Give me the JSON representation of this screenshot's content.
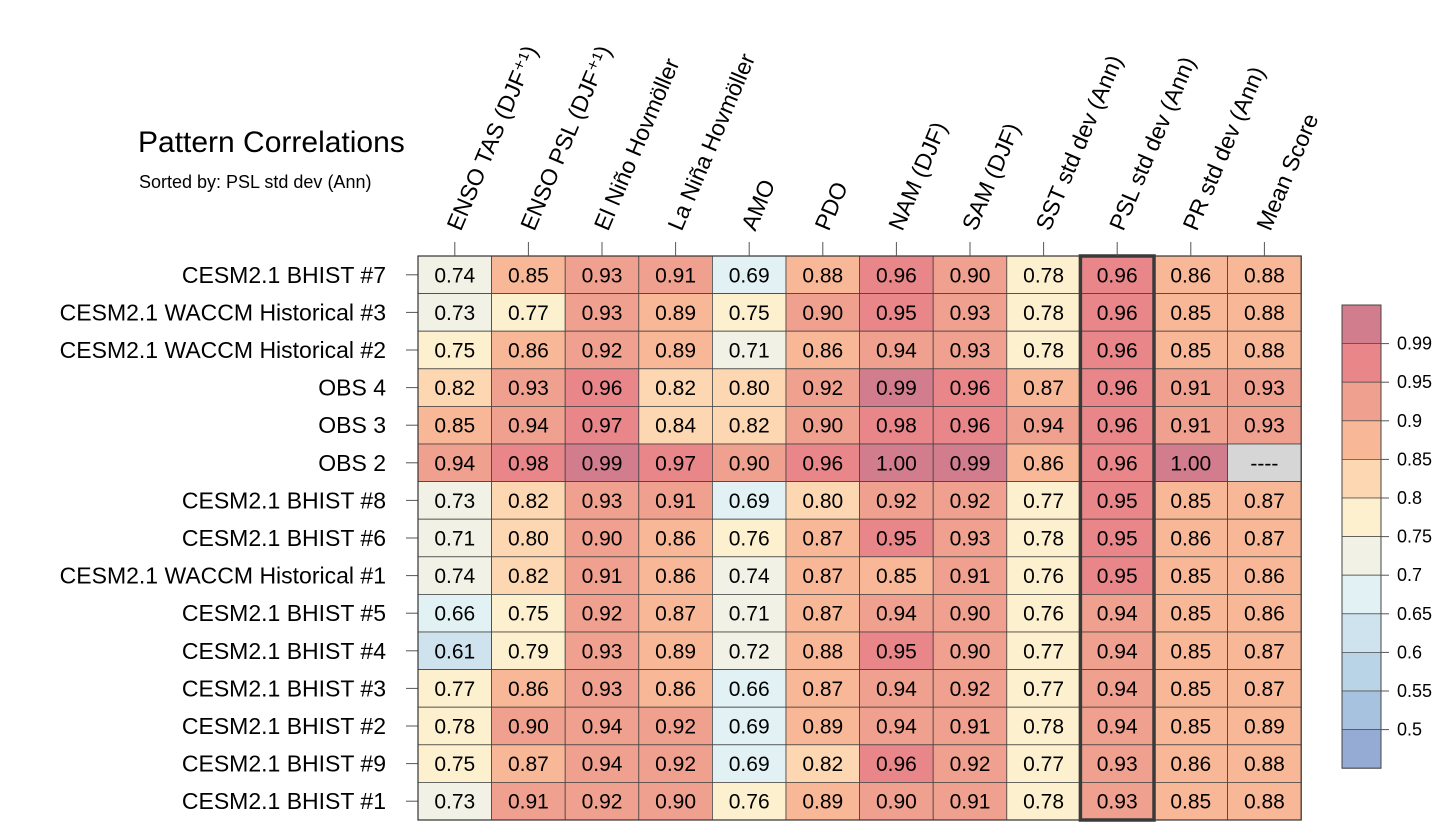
{
  "chart_data": {
    "type": "heatmap",
    "title": "Pattern Correlations",
    "subtitle": "Sorted by: PSL std dev (Ann)",
    "columns": [
      "ENSO TAS (DJF⁺¹)",
      "ENSO PSL (DJF⁺¹)",
      "El Niño Hovmöller",
      "La Niña Hovmöller",
      "AMO",
      "PDO",
      "NAM (DJF)",
      "SAM (DJF)",
      "SST std dev (Ann)",
      "PSL std dev (Ann)",
      "PR std dev (Ann)",
      "Mean Score"
    ],
    "rows": [
      {
        "label": "CESM2.1 BHIST #7",
        "values": [
          0.74,
          0.85,
          0.93,
          0.91,
          0.69,
          0.88,
          0.96,
          0.9,
          0.78,
          0.96,
          0.86,
          0.88
        ]
      },
      {
        "label": "CESM2.1 WACCM Historical #3",
        "values": [
          0.73,
          0.77,
          0.93,
          0.89,
          0.75,
          0.9,
          0.95,
          0.93,
          0.78,
          0.96,
          0.85,
          0.88
        ]
      },
      {
        "label": "CESM2.1 WACCM Historical #2",
        "values": [
          0.75,
          0.86,
          0.92,
          0.89,
          0.71,
          0.86,
          0.94,
          0.93,
          0.78,
          0.96,
          0.85,
          0.88
        ]
      },
      {
        "label": "OBS 4",
        "values": [
          0.82,
          0.93,
          0.96,
          0.82,
          0.8,
          0.92,
          0.99,
          0.96,
          0.87,
          0.96,
          0.91,
          0.93
        ]
      },
      {
        "label": "OBS 3",
        "values": [
          0.85,
          0.94,
          0.97,
          0.84,
          0.82,
          0.9,
          0.98,
          0.96,
          0.94,
          0.96,
          0.91,
          0.93
        ]
      },
      {
        "label": "OBS 2",
        "values": [
          0.94,
          0.98,
          0.99,
          0.97,
          0.9,
          0.96,
          1.0,
          0.99,
          0.86,
          0.96,
          1.0,
          null
        ]
      },
      {
        "label": "CESM2.1 BHIST #8",
        "values": [
          0.73,
          0.82,
          0.93,
          0.91,
          0.69,
          0.8,
          0.92,
          0.92,
          0.77,
          0.95,
          0.85,
          0.87
        ]
      },
      {
        "label": "CESM2.1 BHIST #6",
        "values": [
          0.71,
          0.8,
          0.9,
          0.86,
          0.76,
          0.87,
          0.95,
          0.93,
          0.78,
          0.95,
          0.86,
          0.87
        ]
      },
      {
        "label": "CESM2.1 WACCM Historical #1",
        "values": [
          0.74,
          0.82,
          0.91,
          0.86,
          0.74,
          0.87,
          0.85,
          0.91,
          0.76,
          0.95,
          0.85,
          0.86
        ]
      },
      {
        "label": "CESM2.1 BHIST #5",
        "values": [
          0.66,
          0.75,
          0.92,
          0.87,
          0.71,
          0.87,
          0.94,
          0.9,
          0.76,
          0.94,
          0.85,
          0.86
        ]
      },
      {
        "label": "CESM2.1 BHIST #4",
        "values": [
          0.61,
          0.79,
          0.93,
          0.89,
          0.72,
          0.88,
          0.95,
          0.9,
          0.77,
          0.94,
          0.85,
          0.87
        ]
      },
      {
        "label": "CESM2.1 BHIST #3",
        "values": [
          0.77,
          0.86,
          0.93,
          0.86,
          0.66,
          0.87,
          0.94,
          0.92,
          0.77,
          0.94,
          0.85,
          0.87
        ]
      },
      {
        "label": "CESM2.1 BHIST #2",
        "values": [
          0.78,
          0.9,
          0.94,
          0.92,
          0.69,
          0.89,
          0.94,
          0.91,
          0.78,
          0.94,
          0.85,
          0.89
        ]
      },
      {
        "label": "CESM2.1 BHIST #9",
        "values": [
          0.75,
          0.87,
          0.94,
          0.92,
          0.69,
          0.82,
          0.96,
          0.92,
          0.77,
          0.93,
          0.86,
          0.88
        ]
      },
      {
        "label": "CESM2.1 BHIST #1",
        "values": [
          0.73,
          0.91,
          0.92,
          0.9,
          0.76,
          0.89,
          0.9,
          0.91,
          0.78,
          0.93,
          0.85,
          0.88
        ]
      }
    ],
    "missing_label": "----",
    "highlighted_column": "PSL std dev (Ann)",
    "legend": {
      "placement": "right",
      "labels": [
        "0.99",
        "0.95",
        "0.9",
        "0.85",
        "0.8",
        "0.75",
        "0.7",
        "0.65",
        "0.6",
        "0.55",
        "0.5"
      ],
      "bounds": [
        0.99,
        0.95,
        0.9,
        0.85,
        0.8,
        0.75,
        0.7,
        0.65,
        0.6,
        0.55,
        0.5
      ],
      "colors": [
        "#d27d8e",
        "#e8868a",
        "#f0a08e",
        "#f8b897",
        "#fcd7b2",
        "#fdf0cf",
        "#f1f1e5",
        "#e2f1f4",
        "#cfe3ee",
        "#b9d3e7",
        "#a6c2df",
        "#96abd3"
      ]
    },
    "missing_color": "#d6d6d6",
    "cell_line_color": "#444444"
  }
}
